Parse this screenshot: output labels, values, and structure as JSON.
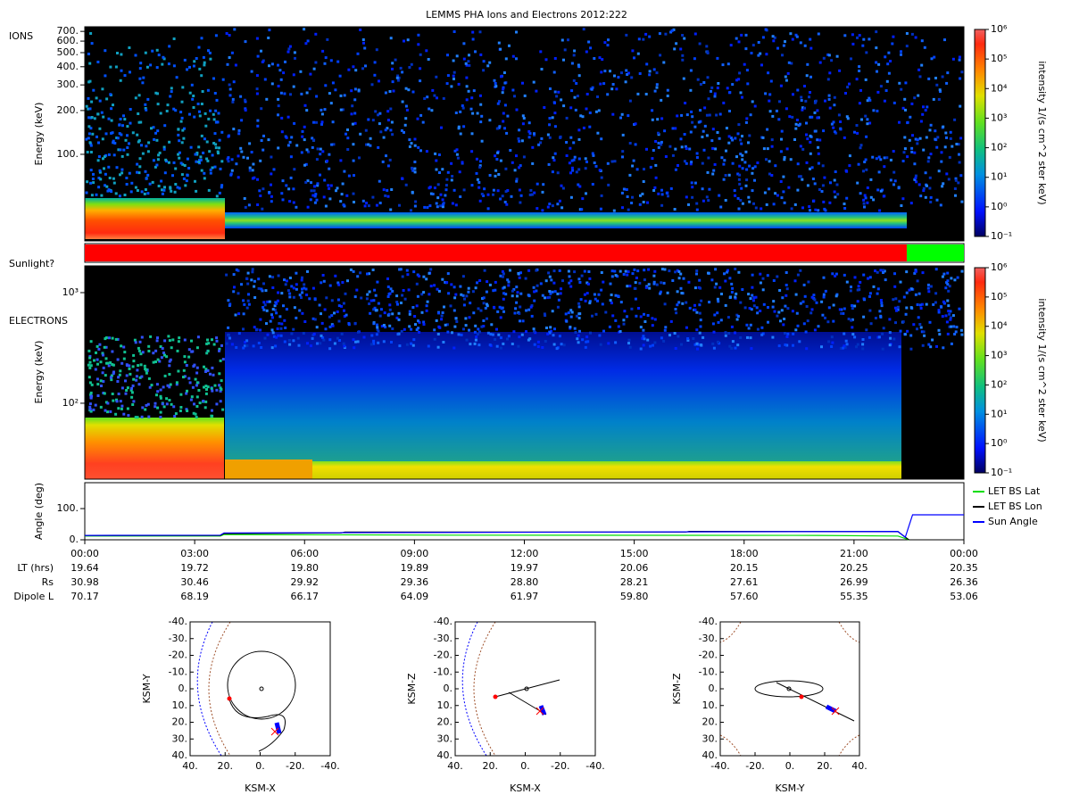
{
  "chart_data": {
    "type": "spectrogram",
    "title": "LEMMS PHA Ions and Electrons  2012:222",
    "ions_panel": {
      "label": "IONS",
      "y_label": "Energy (keV)",
      "log_y": true,
      "ylim": [
        25.4,
        753
      ],
      "yticks": [
        {
          "value": 100,
          "label": "100."
        },
        {
          "value": 200,
          "label": "200."
        },
        {
          "value": 300,
          "label": "300."
        },
        {
          "value": 400,
          "label": "400."
        },
        {
          "value": 500,
          "label": "500."
        },
        {
          "value": 600,
          "label": "600."
        },
        {
          "value": 700,
          "label": "700."
        }
      ]
    },
    "sunlight": {
      "label": "Sunlight?",
      "segments": [
        {
          "color": "#ff0000",
          "start": 0,
          "end": 22.44
        },
        {
          "color": "#00ff00",
          "start": 22.44,
          "end": 24
        }
      ]
    },
    "electrons_panel": {
      "label": "ELECTRONS",
      "y_label": "Energy (keV)",
      "log_y": true,
      "ylim": [
        20.6,
        1745
      ],
      "yticks": [
        {
          "value": 100,
          "label": "10²"
        },
        {
          "value": 1000,
          "label": "10³"
        }
      ]
    },
    "colorbar": {
      "label": "intensity 1/(s cm^2 ster keV)",
      "log": true,
      "lim": [
        0.1,
        1000000
      ],
      "ticks": [
        {
          "value": 0.1,
          "label": "10⁻¹"
        },
        {
          "value": 1,
          "label": "10⁰"
        },
        {
          "value": 10,
          "label": "10¹"
        },
        {
          "value": 100,
          "label": "10²"
        },
        {
          "value": 1000,
          "label": "10³"
        },
        {
          "value": 10000,
          "label": "10⁴"
        },
        {
          "value": 100000,
          "label": "10⁵"
        },
        {
          "value": 1000000,
          "label": "10⁶"
        }
      ]
    },
    "angle_panel": {
      "y_label": "Angle (deg)",
      "ylim": [
        0,
        183
      ],
      "yticks": [
        {
          "value": 0,
          "label": "0."
        },
        {
          "value": 100,
          "label": "100."
        }
      ],
      "series": [
        {
          "name": "LET BS Lat",
          "color": "#00dd00",
          "x": [
            0,
            3.7,
            3.8,
            10,
            20,
            22.2,
            22.5
          ],
          "values": [
            12,
            12,
            17,
            15,
            14,
            12,
            0
          ]
        },
        {
          "name": "LET BS Lon",
          "color": "#000000",
          "x": [
            0,
            3.7,
            3.8,
            7,
            7.1,
            16.4,
            16.5,
            22.2,
            22.5
          ],
          "values": [
            14,
            14,
            20,
            22,
            25,
            25,
            27,
            26,
            0
          ]
        },
        {
          "name": "Sun Angle",
          "color": "#0000ff",
          "x": [
            0,
            3.7,
            3.8,
            22.2,
            22.4,
            22.6,
            24
          ],
          "values": [
            14,
            15,
            22,
            27,
            8,
            80,
            80
          ]
        }
      ]
    },
    "time_axis": {
      "xlim": [
        0,
        24
      ],
      "xticks": [
        {
          "value": 0,
          "label": "00:00"
        },
        {
          "value": 3,
          "label": "03:00"
        },
        {
          "value": 6,
          "label": "06:00"
        },
        {
          "value": 9,
          "label": "09:00"
        },
        {
          "value": 12,
          "label": "12:00"
        },
        {
          "value": 15,
          "label": "15:00"
        },
        {
          "value": 18,
          "label": "18:00"
        },
        {
          "value": 21,
          "label": "21:00"
        },
        {
          "value": 24,
          "label": "00:00"
        }
      ],
      "rows": [
        {
          "label": "LT (hrs)",
          "values": [
            "19.64",
            "19.72",
            "19.80",
            "19.89",
            "19.97",
            "20.06",
            "20.15",
            "20.25",
            "20.35"
          ]
        },
        {
          "label": "Rs",
          "values": [
            "30.98",
            "30.46",
            "29.92",
            "29.36",
            "28.80",
            "28.21",
            "27.61",
            "26.99",
            "26.36"
          ]
        },
        {
          "label": "Dipole L",
          "values": [
            "70.17",
            "68.19",
            "66.17",
            "64.09",
            "61.97",
            "59.80",
            "57.60",
            "55.35",
            "53.06"
          ]
        }
      ]
    },
    "orbits": [
      {
        "x_label": "KSM-X",
        "y_label": "KSM-Y",
        "xlim": [
          40,
          -40
        ],
        "ylim": [
          -40,
          40
        ],
        "xticks": [
          {
            "value": 40,
            "label": "40."
          },
          {
            "value": 20,
            "label": "20."
          },
          {
            "value": 0,
            "label": "0."
          },
          {
            "value": -20,
            "label": "-20."
          },
          {
            "value": -40,
            "label": "-40."
          }
        ],
        "yticks": [
          {
            "value": -40,
            "label": "-40."
          },
          {
            "value": -30,
            "label": "-30."
          },
          {
            "value": -20,
            "label": "-20."
          },
          {
            "value": -10,
            "label": "-10."
          },
          {
            "value": 0,
            "label": "0."
          },
          {
            "value": 10,
            "label": "10."
          },
          {
            "value": 20,
            "label": "20."
          },
          {
            "value": 30,
            "label": "30."
          },
          {
            "value": 40,
            "label": "40."
          }
        ]
      },
      {
        "x_label": "KSM-X",
        "y_label": "KSM-Z",
        "xlim": [
          40,
          -40
        ],
        "ylim": [
          -40,
          40
        ],
        "xticks": [
          {
            "value": 40,
            "label": "40."
          },
          {
            "value": 20,
            "label": "20."
          },
          {
            "value": 0,
            "label": "0."
          },
          {
            "value": -20,
            "label": "-20."
          },
          {
            "value": -40,
            "label": "-40."
          }
        ],
        "yticks": [
          {
            "value": -40,
            "label": "-40."
          },
          {
            "value": -30,
            "label": "-30."
          },
          {
            "value": -20,
            "label": "-20."
          },
          {
            "value": -10,
            "label": "-10."
          },
          {
            "value": 0,
            "label": "0."
          },
          {
            "value": 10,
            "label": "10."
          },
          {
            "value": 20,
            "label": "20."
          },
          {
            "value": 30,
            "label": "30."
          },
          {
            "value": 40,
            "label": "40."
          }
        ]
      },
      {
        "x_label": "KSM-Y",
        "y_label": "KSM-Z",
        "xlim": [
          -40,
          40
        ],
        "ylim": [
          -40,
          40
        ],
        "xticks": [
          {
            "value": -40,
            "label": "-40."
          },
          {
            "value": -20,
            "label": "-20."
          },
          {
            "value": 0,
            "label": "0."
          },
          {
            "value": 20,
            "label": "20."
          },
          {
            "value": 40,
            "label": "40."
          }
        ],
        "yticks": [
          {
            "value": -40,
            "label": "-40."
          },
          {
            "value": -30,
            "label": "-30."
          },
          {
            "value": -20,
            "label": "-20."
          },
          {
            "value": -10,
            "label": "-10."
          },
          {
            "value": 0,
            "label": "0."
          },
          {
            "value": 10,
            "label": "10."
          },
          {
            "value": 20,
            "label": "20."
          },
          {
            "value": 30,
            "label": "30."
          },
          {
            "value": 40,
            "label": "40."
          }
        ]
      }
    ]
  }
}
